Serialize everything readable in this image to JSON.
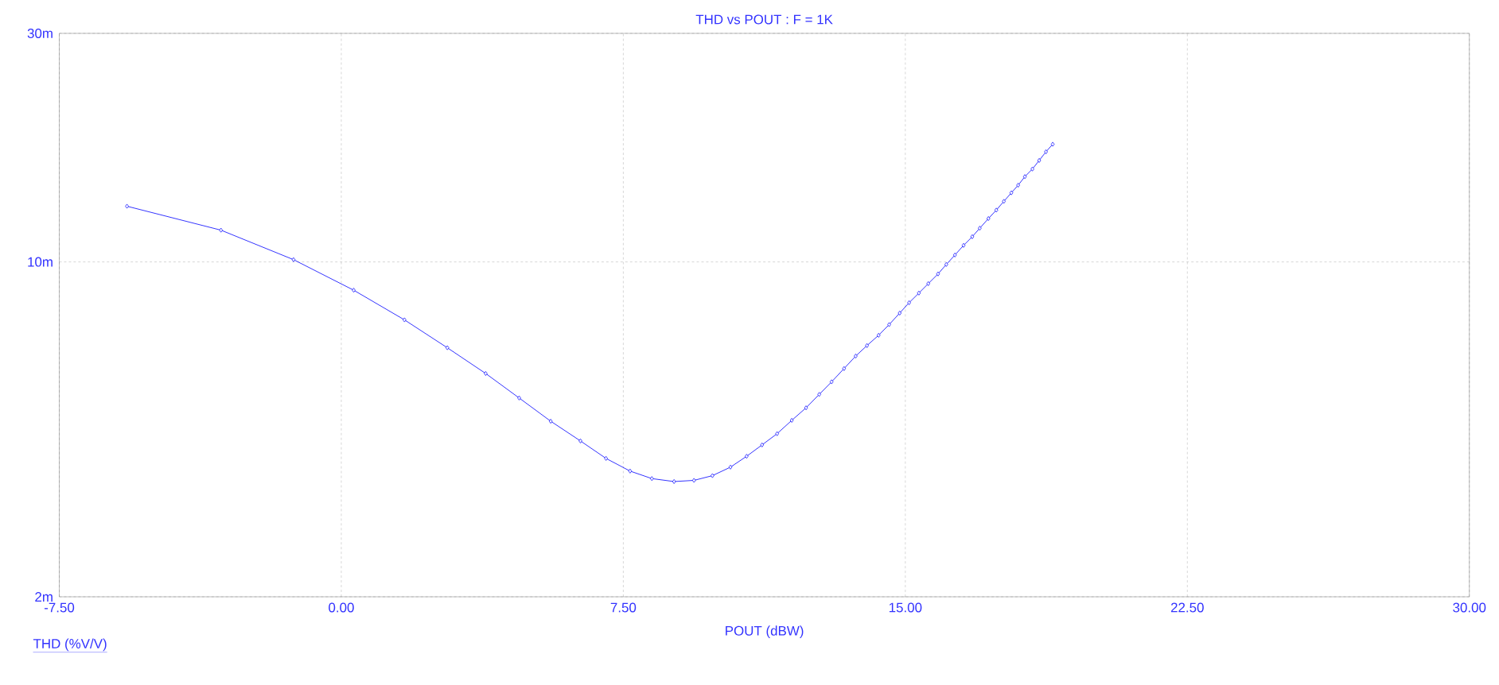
{
  "chart_data": {
    "type": "line",
    "title": "THD vs POUT : F = 1K",
    "xlabel": "POUT (dBW)",
    "ylabel": "THD (%V/V)",
    "x": [
      -5.7,
      -3.2,
      -1.27,
      0.33,
      1.68,
      2.82,
      3.84,
      4.73,
      5.57,
      6.36,
      7.04,
      7.68,
      8.26,
      8.85,
      9.38,
      9.87,
      10.35,
      10.78,
      11.19,
      11.59,
      11.98,
      12.36,
      12.71,
      13.04,
      13.37,
      13.68,
      13.98,
      14.29,
      14.57,
      14.85,
      15.1,
      15.36,
      15.61,
      15.87,
      16.09,
      16.32,
      16.55,
      16.78,
      16.98,
      17.21,
      17.42,
      17.62,
      17.82,
      18.0,
      18.18,
      18.38,
      18.56,
      18.74,
      18.92
    ],
    "series": [
      {
        "color": "#0000ff",
        "values": [
          13.07,
          11.65,
          10.11,
          8.73,
          7.57,
          6.62,
          5.85,
          5.2,
          4.65,
          4.23,
          3.89,
          3.66,
          3.53,
          3.48,
          3.5,
          3.58,
          3.73,
          3.93,
          4.15,
          4.38,
          4.67,
          4.96,
          5.29,
          5.62,
          5.99,
          6.36,
          6.69,
          7.03,
          7.4,
          7.82,
          8.22,
          8.61,
          9.01,
          9.44,
          9.88,
          10.34,
          10.83,
          11.29,
          11.76,
          12.32,
          12.83,
          13.38,
          13.94,
          14.46,
          15.07,
          15.63,
          16.29,
          16.98,
          17.61
        ]
      }
    ],
    "xlim": [
      -7.5,
      30
    ],
    "ylim": [
      2,
      30
    ],
    "log": "y",
    "xticks": [
      {
        "value": -7.5,
        "label": "-7.50"
      },
      {
        "value": 0,
        "label": "0.00"
      },
      {
        "value": 7.5,
        "label": "7.50"
      },
      {
        "value": 15,
        "label": "15.00"
      },
      {
        "value": 22.5,
        "label": "22.50"
      },
      {
        "value": 30,
        "label": "30.00"
      }
    ],
    "yticks": [
      {
        "value": 2,
        "label": "2m"
      },
      {
        "value": 10,
        "label": "10m"
      },
      {
        "value": 30,
        "label": "30m"
      }
    ],
    "grid": true,
    "marker": "diamond",
    "line_style": "solid"
  }
}
